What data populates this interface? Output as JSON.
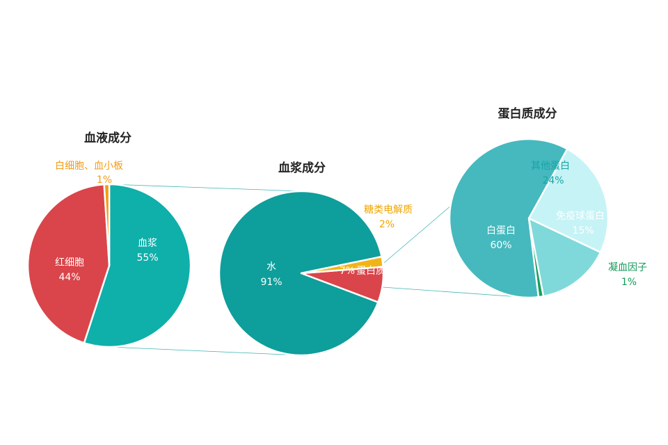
{
  "chart_data": [
    {
      "type": "pie",
      "title": "血液成分",
      "slices": [
        {
          "label": "血浆",
          "value": 55,
          "value_label": "55%",
          "color": "#0fafaa",
          "label_color": "#ffffff"
        },
        {
          "label": "红细胞",
          "value": 44,
          "value_label": "44%",
          "color": "#d9454a",
          "label_color": "#ffffff"
        },
        {
          "label": "白细胞、血小板",
          "value": 1,
          "value_label": "1%",
          "color": "#f39c12",
          "label_color": "#f39c12"
        }
      ]
    },
    {
      "type": "pie",
      "title": "血浆成分",
      "slices": [
        {
          "label": "水",
          "value": 91,
          "value_label": "91%",
          "color": "#0e9e9b",
          "label_color": "#ffffff"
        },
        {
          "label": "糖类电解质",
          "value": 2,
          "value_label": "2%",
          "color": "#f1b418",
          "label_color": "#f0a500"
        },
        {
          "label": "蛋白质",
          "value": 7,
          "value_label": "7%",
          "color": "#d9454a",
          "label_color": "#ffffff"
        }
      ]
    },
    {
      "type": "pie",
      "title": "蛋白质成分",
      "slices": [
        {
          "label": "白蛋白",
          "value": 60,
          "value_label": "60%",
          "color": "#45b9be",
          "label_color": "#ffffff"
        },
        {
          "label": "其他蛋白",
          "value": 24,
          "value_label": "24%",
          "color": "#c6f3f6",
          "label_color": "#1aa3a6"
        },
        {
          "label": "免疫球蛋白",
          "value": 15,
          "value_label": "15%",
          "color": "#7fd9da",
          "label_color": "#ffffff"
        },
        {
          "label": "凝血因子",
          "value": 1,
          "value_label": "1%",
          "color": "#18a05f",
          "label_color": "#129a58"
        }
      ]
    }
  ]
}
